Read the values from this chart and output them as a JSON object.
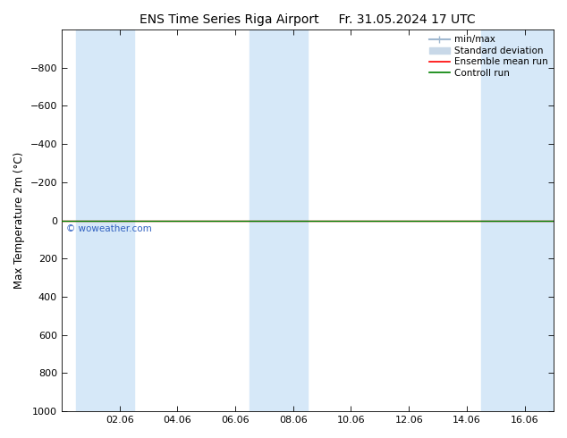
{
  "title_left": "ENS Time Series Riga Airport",
  "title_right": "Fr. 31.05.2024 17 UTC",
  "ylabel": "Max Temperature 2m (°C)",
  "watermark": "© woweather.com",
  "ylim_bottom": -1000,
  "ylim_top": 1000,
  "yticks": [
    -800,
    -600,
    -400,
    -200,
    0,
    200,
    400,
    600,
    800,
    1000
  ],
  "xtick_labels": [
    "02.06",
    "04.06",
    "06.06",
    "08.06",
    "10.06",
    "12.06",
    "14.06",
    "16.06"
  ],
  "xtick_positions": [
    2,
    4,
    6,
    8,
    10,
    12,
    14,
    16
  ],
  "xlim": [
    0,
    17
  ],
  "shaded_bands": [
    {
      "xstart": 0.5,
      "xend": 2.5
    },
    {
      "xstart": 6.5,
      "xend": 8.5
    },
    {
      "xstart": 14.5,
      "xend": 17
    }
  ],
  "green_line_y": 0,
  "red_line_y": 0,
  "background_color": "#ffffff",
  "shade_color": "#d6e8f8",
  "green_line_color": "#008000",
  "red_line_color": "#ff0000",
  "legend_minmax_color": "#a0b8d0",
  "legend_stddev_color": "#c8d8e8",
  "title_fontsize": 10,
  "label_fontsize": 8.5,
  "tick_fontsize": 8,
  "watermark_color": "#3060c0",
  "legend_fontsize": 7.5
}
